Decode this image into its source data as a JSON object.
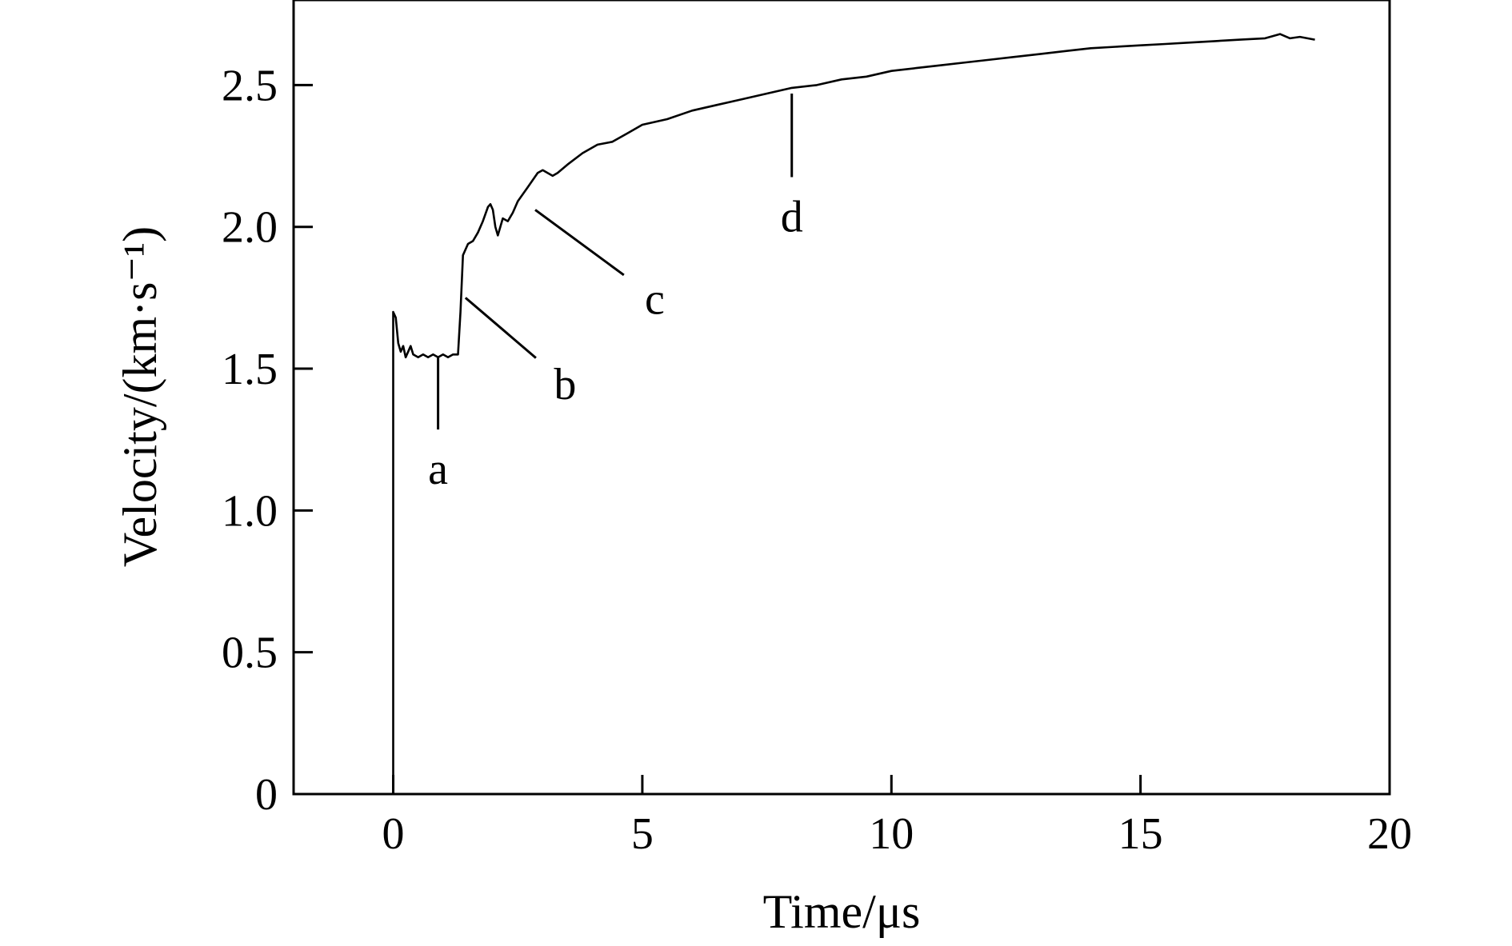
{
  "chart_data": {
    "type": "line",
    "xlabel": "Time/μs",
    "ylabel": "Velocity/(km·s⁻¹)",
    "xlim": [
      -2,
      20
    ],
    "ylim": [
      0,
      2.8
    ],
    "xticks": [
      0,
      5,
      10,
      15,
      20
    ],
    "yticks": [
      0,
      0.5,
      1.0,
      1.5,
      2.0,
      2.5
    ],
    "xtick_labels": [
      "0",
      "5",
      "10",
      "15",
      "20"
    ],
    "ytick_labels": [
      "0",
      "0.5",
      "1.0",
      "1.5",
      "2.0",
      "2.5"
    ],
    "grid": false,
    "legend": "none",
    "series": [
      {
        "points": [
          [
            0,
            0
          ],
          [
            0.0,
            1.7
          ],
          [
            0.05,
            1.68
          ],
          [
            0.1,
            1.59
          ],
          [
            0.15,
            1.56
          ],
          [
            0.2,
            1.58
          ],
          [
            0.25,
            1.54
          ],
          [
            0.3,
            1.56
          ],
          [
            0.35,
            1.58
          ],
          [
            0.4,
            1.55
          ],
          [
            0.5,
            1.54
          ],
          [
            0.6,
            1.55
          ],
          [
            0.7,
            1.54
          ],
          [
            0.8,
            1.55
          ],
          [
            0.9,
            1.54
          ],
          [
            1.0,
            1.55
          ],
          [
            1.1,
            1.54
          ],
          [
            1.2,
            1.55
          ],
          [
            1.3,
            1.55
          ],
          [
            1.35,
            1.7
          ],
          [
            1.4,
            1.9
          ],
          [
            1.5,
            1.94
          ],
          [
            1.6,
            1.95
          ],
          [
            1.7,
            1.98
          ],
          [
            1.8,
            2.02
          ],
          [
            1.9,
            2.07
          ],
          [
            1.95,
            2.08
          ],
          [
            2.0,
            2.06
          ],
          [
            2.05,
            2.0
          ],
          [
            2.1,
            1.97
          ],
          [
            2.2,
            2.03
          ],
          [
            2.3,
            2.02
          ],
          [
            2.4,
            2.05
          ],
          [
            2.5,
            2.09
          ],
          [
            2.7,
            2.14
          ],
          [
            2.9,
            2.19
          ],
          [
            3.0,
            2.2
          ],
          [
            3.2,
            2.18
          ],
          [
            3.3,
            2.19
          ],
          [
            3.5,
            2.22
          ],
          [
            3.8,
            2.26
          ],
          [
            4.1,
            2.29
          ],
          [
            4.4,
            2.3
          ],
          [
            4.7,
            2.33
          ],
          [
            5.0,
            2.36
          ],
          [
            5.5,
            2.38
          ],
          [
            6.0,
            2.41
          ],
          [
            6.5,
            2.43
          ],
          [
            7.0,
            2.45
          ],
          [
            7.5,
            2.47
          ],
          [
            8.0,
            2.49
          ],
          [
            8.5,
            2.5
          ],
          [
            9.0,
            2.52
          ],
          [
            9.5,
            2.53
          ],
          [
            10.0,
            2.55
          ],
          [
            10.5,
            2.56
          ],
          [
            11.0,
            2.57
          ],
          [
            11.5,
            2.58
          ],
          [
            12.0,
            2.59
          ],
          [
            12.5,
            2.6
          ],
          [
            13.0,
            2.61
          ],
          [
            13.5,
            2.62
          ],
          [
            14.0,
            2.63
          ],
          [
            14.5,
            2.635
          ],
          [
            15.0,
            2.64
          ],
          [
            15.5,
            2.645
          ],
          [
            16.0,
            2.65
          ],
          [
            16.5,
            2.655
          ],
          [
            17.0,
            2.66
          ],
          [
            17.5,
            2.665
          ],
          [
            17.8,
            2.68
          ],
          [
            18.0,
            2.665
          ],
          [
            18.2,
            2.67
          ],
          [
            18.5,
            2.66
          ]
        ]
      }
    ],
    "annotations": [
      {
        "label": "a",
        "point": [
          0.9,
          1.54
        ],
        "text_at": [
          0.9,
          1.15
        ]
      },
      {
        "label": "b",
        "point": [
          1.45,
          1.75
        ],
        "text_at": [
          3.45,
          1.45
        ]
      },
      {
        "label": "c",
        "point": [
          2.85,
          2.06
        ],
        "text_at": [
          5.25,
          1.75
        ]
      },
      {
        "label": "d",
        "point": [
          8.0,
          2.47
        ],
        "text_at": [
          8.0,
          2.04
        ]
      }
    ]
  }
}
